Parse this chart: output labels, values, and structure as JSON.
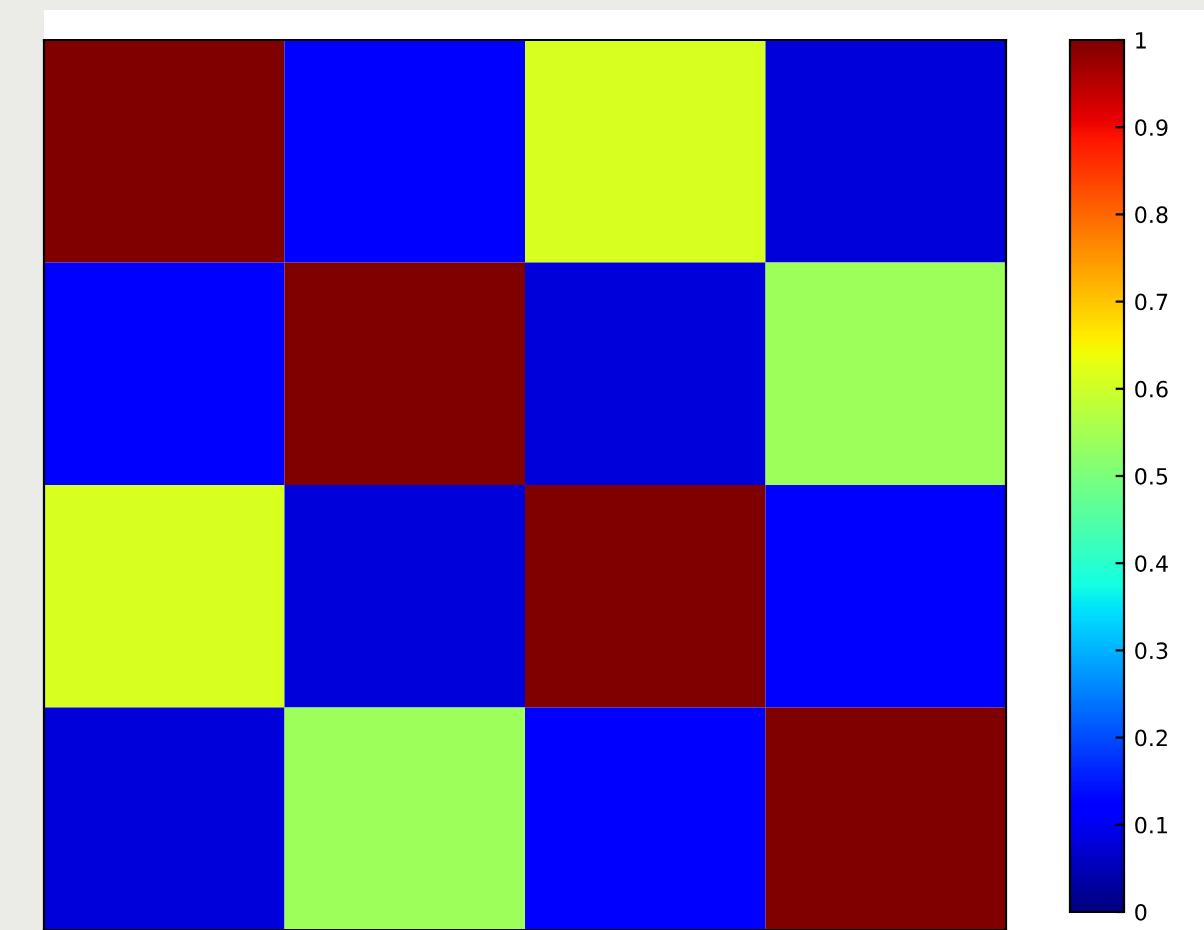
{
  "chart_data": {
    "type": "heatmap",
    "categories": [
      null,
      null,
      null,
      null
    ],
    "y_categories": [
      null,
      null,
      null,
      null
    ],
    "cells": [
      [
        1,
        0.12,
        0.61,
        0.08
      ],
      [
        0.12,
        1,
        0.08,
        0.54
      ],
      [
        0.61,
        0.08,
        1,
        0.12
      ],
      [
        0.08,
        0.54,
        0.12,
        1
      ]
    ],
    "clim": [
      0,
      1
    ],
    "cticks": [
      0,
      0.1,
      0.2,
      0.3,
      0.4,
      0.5,
      0.6,
      0.7,
      0.8,
      0.9,
      1
    ]
  }
}
